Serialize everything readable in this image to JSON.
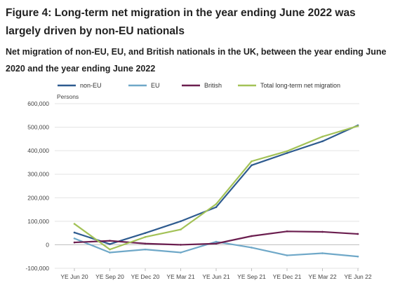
{
  "figure": {
    "title": "Figure 4: Long-term net migration in the year ending June 2022 was largely driven by non-EU nationals",
    "subtitle": "Net migration of non-EU, EU, and British nationals in the UK, between the year ending June 2020 and the year ending June 2022"
  },
  "chart_data": {
    "type": "line",
    "title": "",
    "ylabel": "Persons",
    "xlabel": "",
    "ylim": [
      -100000,
      600000
    ],
    "yticks": [
      600000,
      500000,
      400000,
      300000,
      200000,
      100000,
      0,
      -100000
    ],
    "ytick_labels": [
      "600,000",
      "500,000",
      "400,000",
      "300,000",
      "200,000",
      "100,000",
      "0",
      "-100,000"
    ],
    "grid": "horizontal",
    "legend_position": "top",
    "categories": [
      "YE Jun 20",
      "YE Sep 20",
      "YE Dec 20",
      "YE Mar 21",
      "YE Jun 21",
      "YE Sep 21",
      "YE Dec 21",
      "YE Mar 22",
      "YE Jun 22"
    ],
    "series": [
      {
        "name": "non-EU",
        "color": "#2e5b8f",
        "values": [
          52000,
          3000,
          50000,
          100000,
          160000,
          338000,
          390000,
          440000,
          508000
        ]
      },
      {
        "name": "EU",
        "color": "#6fa8c8",
        "values": [
          27000,
          -33000,
          -20000,
          -33000,
          13000,
          -12000,
          -45000,
          -36000,
          -50000
        ]
      },
      {
        "name": "British",
        "color": "#6b1e4f",
        "values": [
          10000,
          17000,
          5000,
          0,
          5000,
          37000,
          57000,
          55000,
          46000
        ]
      },
      {
        "name": "Total long-term net migration",
        "color": "#a3c257",
        "values": [
          89000,
          -20000,
          33000,
          65000,
          173000,
          355000,
          398000,
          460000,
          505000
        ]
      }
    ]
  }
}
